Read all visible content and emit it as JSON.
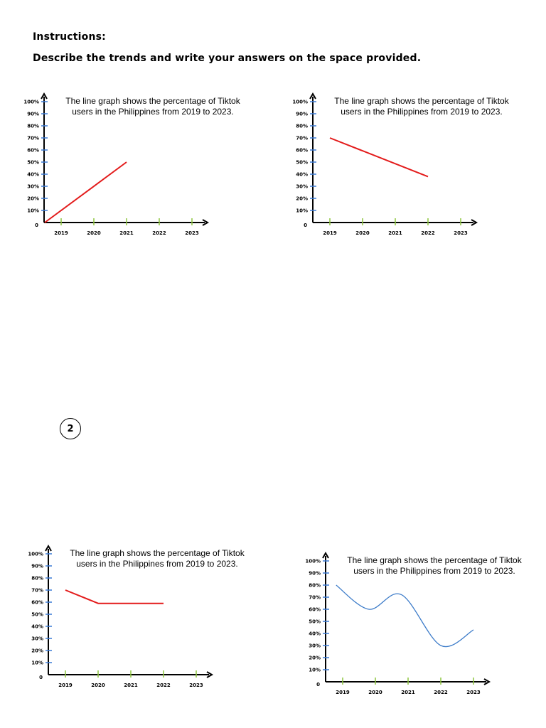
{
  "instructions": {
    "heading": "Instructions:",
    "text": "Describe the trends and write your answers on the space provided."
  },
  "page_number": "2",
  "colors": {
    "axis": "#000000",
    "y_tick": "#3a7bd5",
    "x_tick": "#8dc63f",
    "line_red": "#e31b1b",
    "line_blue": "#3d7cc9"
  },
  "chart_data": [
    {
      "type": "line",
      "caption": [
        "The line graph shows the percentage of Tiktok",
        "users in the Philippines from 2019 to 2023."
      ],
      "x_ticks": [
        "2019",
        "2020",
        "2021",
        "2022",
        "2023"
      ],
      "y_ticks": [
        "0",
        "10%",
        "20%",
        "30%",
        "40%",
        "50%",
        "60%",
        "70%",
        "80%",
        "90%",
        "100%"
      ],
      "ylim": [
        0,
        100
      ],
      "series": [
        {
          "color": "red",
          "points": [
            [
              2018.5,
              0
            ],
            [
              2021,
              50
            ]
          ]
        }
      ]
    },
    {
      "type": "line",
      "caption": [
        "The line graph shows the percentage of Tiktok",
        "users in the Philippines from 2019 to 2023."
      ],
      "x_ticks": [
        "2019",
        "2020",
        "2021",
        "2022",
        "2023"
      ],
      "y_ticks": [
        "0",
        "10%",
        "20%",
        "30%",
        "40%",
        "50%",
        "60%",
        "70%",
        "80%",
        "90%",
        "100%"
      ],
      "ylim": [
        0,
        100
      ],
      "series": [
        {
          "color": "red",
          "points": [
            [
              2019,
              70
            ],
            [
              2022,
              38
            ]
          ]
        }
      ]
    },
    {
      "type": "line",
      "caption": [
        "The line graph shows the percentage of Tiktok",
        "users in the Philippines from 2019 to 2023."
      ],
      "x_ticks": [
        "2019",
        "2020",
        "2021",
        "2022",
        "2023"
      ],
      "y_ticks": [
        "0",
        "10%",
        "20%",
        "30%",
        "40%",
        "50%",
        "60%",
        "70%",
        "80%",
        "90%",
        "100%"
      ],
      "ylim": [
        0,
        100
      ],
      "series": [
        {
          "color": "red",
          "points": [
            [
              2019,
              70
            ],
            [
              2020,
              59
            ],
            [
              2022,
              59
            ]
          ]
        }
      ]
    },
    {
      "type": "line",
      "caption": [
        "The line graph shows the percentage of Tiktok",
        "users in the Philippines from 2019 to 2023."
      ],
      "x_ticks": [
        "2019",
        "2020",
        "2021",
        "2022",
        "2023"
      ],
      "y_ticks": [
        "0",
        "10%",
        "20%",
        "30%",
        "40%",
        "50%",
        "60%",
        "70%",
        "80%",
        "90%",
        "100%"
      ],
      "ylim": [
        0,
        100
      ],
      "series": [
        {
          "color": "blue",
          "smooth": true,
          "points": [
            [
              2018.8,
              80
            ],
            [
              2019.8,
              60
            ],
            [
              2020.8,
              72
            ],
            [
              2022,
              30
            ],
            [
              2023,
              43
            ]
          ]
        }
      ]
    }
  ]
}
